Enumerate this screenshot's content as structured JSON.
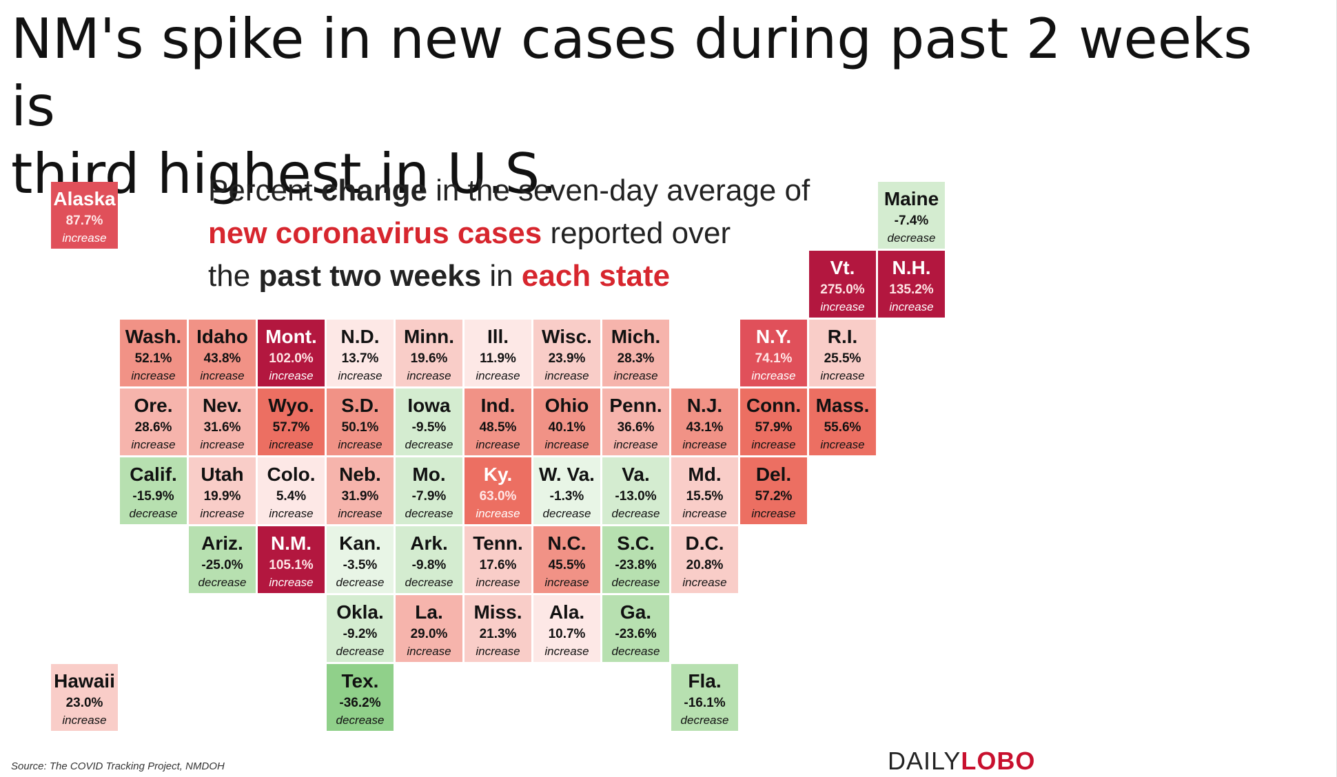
{
  "slide_title": "NM's spike in new cases during past 2 weeks is\nthird highest in U.S.",
  "subtitle": {
    "line1_pre": "Percent ",
    "line1_bold": "change",
    "line1_post": " in the seven-day average of",
    "line2_red": "new coronavirus cases",
    "line2_post": " reported over",
    "line3_pre": "the ",
    "line3_bold": "past two weeks",
    "line3_mid": " in ",
    "line3_red": "each state"
  },
  "source": "Source: The COVID Tracking Project, NMDOH",
  "logo": {
    "part1": "DAILY",
    "part2": "LOBO"
  },
  "colors": {
    "increase_scale": [
      "#fde8e6",
      "#f9cdc8",
      "#f6b4ac",
      "#f19286",
      "#ec6f62",
      "#e0505a",
      "#b3173f"
    ],
    "decrease_scale": [
      "#e8f5e6",
      "#d4ecd0",
      "#b7e0b0",
      "#90d08a"
    ]
  },
  "chart_data": {
    "type": "table",
    "layout": "tile-grid-map",
    "states": [
      {
        "name": "Alaska",
        "value": 87.7,
        "label": "87.7%",
        "direction": "increase",
        "row": 0,
        "col": 0
      },
      {
        "name": "Maine",
        "value": -7.4,
        "label": "-7.4%",
        "direction": "decrease",
        "row": 0,
        "col": 12
      },
      {
        "name": "Vt.",
        "value": 275.0,
        "label": "275.0%",
        "direction": "increase",
        "row": 1,
        "col": 11
      },
      {
        "name": "N.H.",
        "value": 135.2,
        "label": "135.2%",
        "direction": "increase",
        "row": 1,
        "col": 12
      },
      {
        "name": "Wash.",
        "value": 52.1,
        "label": "52.1%",
        "direction": "increase",
        "row": 2,
        "col": 1
      },
      {
        "name": "Idaho",
        "value": 43.8,
        "label": "43.8%",
        "direction": "increase",
        "row": 2,
        "col": 2
      },
      {
        "name": "Mont.",
        "value": 102.0,
        "label": "102.0%",
        "direction": "increase",
        "row": 2,
        "col": 3
      },
      {
        "name": "N.D.",
        "value": 13.7,
        "label": "13.7%",
        "direction": "increase",
        "row": 2,
        "col": 4
      },
      {
        "name": "Minn.",
        "value": 19.6,
        "label": "19.6%",
        "direction": "increase",
        "row": 2,
        "col": 5
      },
      {
        "name": "Ill.",
        "value": 11.9,
        "label": "11.9%",
        "direction": "increase",
        "row": 2,
        "col": 6
      },
      {
        "name": "Wisc.",
        "value": 23.9,
        "label": "23.9%",
        "direction": "increase",
        "row": 2,
        "col": 7
      },
      {
        "name": "Mich.",
        "value": 28.3,
        "label": "28.3%",
        "direction": "increase",
        "row": 2,
        "col": 8
      },
      {
        "name": "N.Y.",
        "value": 74.1,
        "label": "74.1%",
        "direction": "increase",
        "row": 2,
        "col": 10
      },
      {
        "name": "R.I.",
        "value": 25.5,
        "label": "25.5%",
        "direction": "increase",
        "row": 2,
        "col": 11
      },
      {
        "name": "Ore.",
        "value": 28.6,
        "label": "28.6%",
        "direction": "increase",
        "row": 3,
        "col": 1
      },
      {
        "name": "Nev.",
        "value": 31.6,
        "label": "31.6%",
        "direction": "increase",
        "row": 3,
        "col": 2
      },
      {
        "name": "Wyo.",
        "value": 57.7,
        "label": "57.7%",
        "direction": "increase",
        "row": 3,
        "col": 3
      },
      {
        "name": "S.D.",
        "value": 50.1,
        "label": "50.1%",
        "direction": "increase",
        "row": 3,
        "col": 4
      },
      {
        "name": "Iowa",
        "value": -9.5,
        "label": "-9.5%",
        "direction": "decrease",
        "row": 3,
        "col": 5
      },
      {
        "name": "Ind.",
        "value": 48.5,
        "label": "48.5%",
        "direction": "increase",
        "row": 3,
        "col": 6
      },
      {
        "name": "Ohio",
        "value": 40.1,
        "label": "40.1%",
        "direction": "increase",
        "row": 3,
        "col": 7
      },
      {
        "name": "Penn.",
        "value": 36.6,
        "label": "36.6%",
        "direction": "increase",
        "row": 3,
        "col": 8
      },
      {
        "name": "N.J.",
        "value": 43.1,
        "label": "43.1%",
        "direction": "increase",
        "row": 3,
        "col": 9
      },
      {
        "name": "Conn.",
        "value": 57.9,
        "label": "57.9%",
        "direction": "increase",
        "row": 3,
        "col": 10
      },
      {
        "name": "Mass.",
        "value": 55.6,
        "label": "55.6%",
        "direction": "increase",
        "row": 3,
        "col": 11
      },
      {
        "name": "Calif.",
        "value": -15.9,
        "label": "-15.9%",
        "direction": "decrease",
        "row": 4,
        "col": 1
      },
      {
        "name": "Utah",
        "value": 19.9,
        "label": "19.9%",
        "direction": "increase",
        "row": 4,
        "col": 2
      },
      {
        "name": "Colo.",
        "value": 5.4,
        "label": "5.4%",
        "direction": "increase",
        "row": 4,
        "col": 3
      },
      {
        "name": "Neb.",
        "value": 31.9,
        "label": "31.9%",
        "direction": "increase",
        "row": 4,
        "col": 4
      },
      {
        "name": "Mo.",
        "value": -7.9,
        "label": "-7.9%",
        "direction": "decrease",
        "row": 4,
        "col": 5
      },
      {
        "name": "Ky.",
        "value": 63.0,
        "label": "63.0%",
        "direction": "increase",
        "row": 4,
        "col": 6
      },
      {
        "name": "W. Va.",
        "value": -1.3,
        "label": "-1.3%",
        "direction": "decrease",
        "row": 4,
        "col": 7
      },
      {
        "name": "Va.",
        "value": -13.0,
        "label": "-13.0%",
        "direction": "decrease",
        "row": 4,
        "col": 8
      },
      {
        "name": "Md.",
        "value": 15.5,
        "label": "15.5%",
        "direction": "increase",
        "row": 4,
        "col": 9
      },
      {
        "name": "Del.",
        "value": 57.2,
        "label": "57.2%",
        "direction": "increase",
        "row": 4,
        "col": 10
      },
      {
        "name": "Ariz.",
        "value": -25.0,
        "label": "-25.0%",
        "direction": "decrease",
        "row": 5,
        "col": 2
      },
      {
        "name": "N.M.",
        "value": 105.1,
        "label": "105.1%",
        "direction": "increase",
        "row": 5,
        "col": 3
      },
      {
        "name": "Kan.",
        "value": -3.5,
        "label": "-3.5%",
        "direction": "decrease",
        "row": 5,
        "col": 4
      },
      {
        "name": "Ark.",
        "value": -9.8,
        "label": "-9.8%",
        "direction": "decrease",
        "row": 5,
        "col": 5
      },
      {
        "name": "Tenn.",
        "value": 17.6,
        "label": "17.6%",
        "direction": "increase",
        "row": 5,
        "col": 6
      },
      {
        "name": "N.C.",
        "value": 45.5,
        "label": "45.5%",
        "direction": "increase",
        "row": 5,
        "col": 7
      },
      {
        "name": "S.C.",
        "value": -23.8,
        "label": "-23.8%",
        "direction": "decrease",
        "row": 5,
        "col": 8
      },
      {
        "name": "D.C.",
        "value": 20.8,
        "label": "20.8%",
        "direction": "increase",
        "row": 5,
        "col": 9
      },
      {
        "name": "Okla.",
        "value": -9.2,
        "label": "-9.2%",
        "direction": "decrease",
        "row": 6,
        "col": 4
      },
      {
        "name": "La.",
        "value": 29.0,
        "label": "29.0%",
        "direction": "increase",
        "row": 6,
        "col": 5
      },
      {
        "name": "Miss.",
        "value": 21.3,
        "label": "21.3%",
        "direction": "increase",
        "row": 6,
        "col": 6
      },
      {
        "name": "Ala.",
        "value": 10.7,
        "label": "10.7%",
        "direction": "increase",
        "row": 6,
        "col": 7
      },
      {
        "name": "Ga.",
        "value": -23.6,
        "label": "-23.6%",
        "direction": "decrease",
        "row": 6,
        "col": 8
      },
      {
        "name": "Hawaii",
        "value": 23.0,
        "label": "23.0%",
        "direction": "increase",
        "row": 7,
        "col": 0
      },
      {
        "name": "Tex.",
        "value": -36.2,
        "label": "-36.2%",
        "direction": "decrease",
        "row": 7,
        "col": 4
      },
      {
        "name": "Fla.",
        "value": -16.1,
        "label": "-16.1%",
        "direction": "decrease",
        "row": 7,
        "col": 9
      }
    ]
  }
}
